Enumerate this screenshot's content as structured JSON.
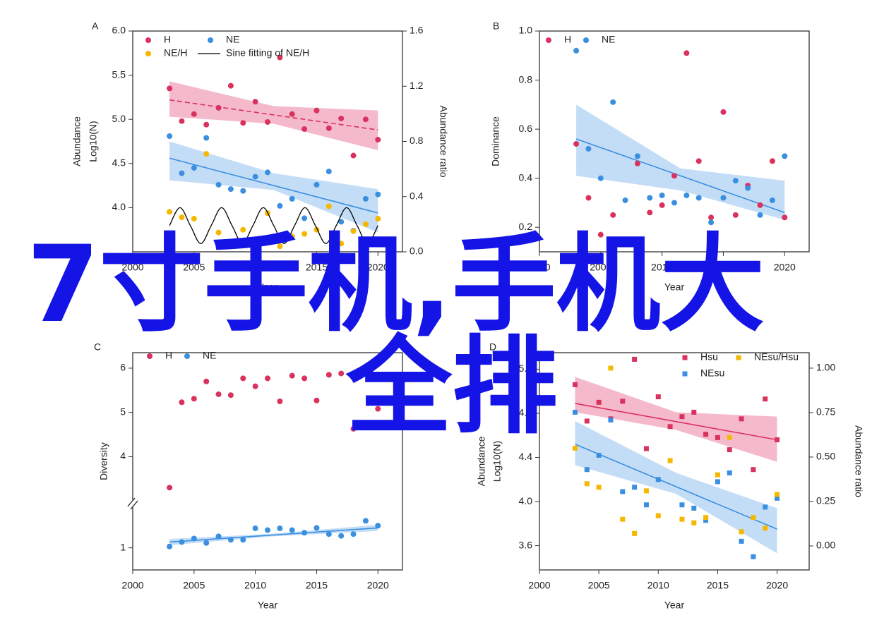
{
  "chart_data": [
    {
      "type": "scatter",
      "label": "A",
      "xlabel": "Year",
      "ylabel": [
        "Abundance",
        "Log10(N)"
      ],
      "y2label": "Abundance ratio",
      "xlim": [
        2000,
        2022
      ],
      "xticks": [
        2000,
        2005,
        2010,
        2015,
        2020
      ],
      "ylim": [
        3.5,
        6.0
      ],
      "yticks": [
        {
          "value": 4,
          "label": "4.0"
        },
        4.5,
        {
          "value": 5,
          "label": "5.0"
        },
        5.5,
        {
          "value": 6,
          "label": "6.0"
        }
      ],
      "y2lim": [
        0,
        1.6
      ],
      "y2ticks": [
        {
          "value": 0,
          "label": "0.0"
        },
        0.4,
        0.8,
        1.2,
        1.6
      ],
      "series": [
        {
          "name": "H",
          "color": "#d9325e",
          "marker": "circle",
          "x": [
            2003,
            2004,
            2005,
            2006,
            2007,
            2008,
            2009,
            2010,
            2011,
            2012,
            2013,
            2014,
            2015,
            2016,
            2017,
            2018,
            2019,
            2020
          ],
          "values": [
            5.35,
            4.98,
            5.06,
            4.94,
            5.13,
            5.38,
            4.96,
            5.2,
            4.97,
            5.7,
            5.06,
            4.89,
            5.1,
            4.9,
            5.01,
            4.59,
            5.0,
            4.77
          ]
        },
        {
          "name": "NE",
          "color": "#3a8fe0",
          "marker": "circle",
          "x": [
            2003,
            2004,
            2005,
            2006,
            2007,
            2008,
            2009,
            2010,
            2011,
            2012,
            2013,
            2014,
            2015,
            2016,
            2017,
            2018,
            2019,
            2020
          ],
          "values": [
            4.81,
            4.39,
            4.45,
            4.79,
            4.26,
            4.21,
            4.19,
            4.35,
            4.4,
            4.02,
            4.1,
            3.88,
            4.26,
            4.41,
            3.84,
            3.74,
            4.1,
            4.15
          ]
        },
        {
          "name": "NE/H",
          "color": "#f5b800",
          "marker": "circle",
          "axis": "y2",
          "x": [
            2003,
            2004,
            2005,
            2006,
            2007,
            2008,
            2009,
            2010,
            2011,
            2012,
            2013,
            2014,
            2015,
            2016,
            2017,
            2018,
            2019,
            2020
          ],
          "values": [
            0.29,
            0.25,
            0.24,
            0.71,
            0.14,
            0.06,
            0.16,
            0.09,
            0.28,
            0.04,
            0.11,
            0.13,
            0.16,
            0.33,
            0.06,
            0.15,
            0.2,
            0.24
          ]
        },
        {
          "name": "Sine fitting of NE/H",
          "color": "#000000",
          "marker": "line",
          "axis": "y2",
          "x": [
            2003,
            2003.85,
            2004.7,
            2005.55,
            2006.4,
            2007.25,
            2008.1,
            2008.95,
            2009.8,
            2010.65,
            2011.5,
            2012.35,
            2013.2,
            2014.05,
            2014.9,
            2015.75,
            2016.6,
            2017.45,
            2018.3,
            2019.15,
            2020
          ],
          "values": [
            0.19,
            0.32,
            0.19,
            0.06,
            0.19,
            0.32,
            0.19,
            0.06,
            0.19,
            0.32,
            0.19,
            0.06,
            0.19,
            0.32,
            0.19,
            0.06,
            0.19,
            0.32,
            0.19,
            0.06,
            0.19
          ]
        }
      ],
      "fits": [
        {
          "color": "#d9325e",
          "band_color": "#f2a8bf",
          "dashed": true,
          "x": [
            2003,
            2020
          ],
          "values": [
            5.22,
            4.88
          ],
          "band": {
            "x": [
              2003,
              2011.5,
              2020
            ],
            "lower": [
              5.03,
              4.95,
              4.65
            ],
            "upper": [
              5.43,
              5.15,
              5.1
            ]
          }
        },
        {
          "color": "#3a8fe0",
          "band_color": "#b5d5f5",
          "dashed": false,
          "x": [
            2003,
            2020
          ],
          "values": [
            4.56,
            3.94
          ],
          "band": {
            "x": [
              2003,
              2011.5,
              2020
            ],
            "lower": [
              4.31,
              4.2,
              3.72
            ],
            "upper": [
              4.75,
              4.39,
              4.21
            ]
          }
        }
      ]
    },
    {
      "type": "scatter",
      "label": "B",
      "xlabel": "Year",
      "ylabel": [
        "Dominance"
      ],
      "xlim": [
        2000,
        2022
      ],
      "xticks": [
        2000,
        2005,
        2010,
        2015,
        2020
      ],
      "ylim": [
        0.1,
        1.0
      ],
      "yticks": [
        0.2,
        0.4,
        0.6,
        0.8,
        {
          "value": 1,
          "label": "1.0"
        }
      ],
      "series": [
        {
          "name": "H",
          "color": "#d9325e",
          "marker": "circle",
          "x": [
            2003,
            2004,
            2005,
            2006,
            2008,
            2009,
            2010,
            2011,
            2012,
            2013,
            2014,
            2015,
            2016,
            2017,
            2018,
            2019,
            2020
          ],
          "values": [
            0.54,
            0.32,
            0.17,
            0.25,
            0.46,
            0.26,
            0.29,
            0.41,
            0.91,
            0.47,
            0.24,
            0.67,
            0.25,
            0.37,
            0.29,
            0.47,
            0.24
          ]
        },
        {
          "name": "NE",
          "color": "#3a8fe0",
          "marker": "circle",
          "x": [
            2003,
            2004,
            2005,
            2006,
            2007,
            2008,
            2009,
            2010,
            2011,
            2012,
            2013,
            2014,
            2015,
            2016,
            2017,
            2018,
            2019,
            2020
          ],
          "values": [
            0.92,
            0.52,
            0.4,
            0.71,
            0.31,
            0.49,
            0.32,
            0.33,
            0.3,
            0.33,
            0.32,
            0.22,
            0.32,
            0.39,
            0.36,
            0.25,
            0.31,
            0.49
          ]
        }
      ],
      "fits": [
        {
          "color": "#3a8fe0",
          "band_color": "#b5d5f5",
          "dashed": false,
          "x": [
            2003,
            2020
          ],
          "values": [
            0.56,
            0.26
          ],
          "band": {
            "x": [
              2003,
              2011.5,
              2020
            ],
            "lower": [
              0.41,
              0.35,
              0.23
            ],
            "upper": [
              0.7,
              0.44,
              0.39
            ]
          }
        }
      ]
    },
    {
      "type": "scatter",
      "label": "C",
      "xlabel": "Year",
      "ylabel": [
        "Diversity"
      ],
      "xlim": [
        2000,
        2022
      ],
      "xticks": [
        2000,
        2005,
        2010,
        2015,
        2020
      ],
      "ylim": [
        0.5,
        6.35
      ],
      "ybreak": [
        2,
        2.94
      ],
      "yticks": [
        1,
        4,
        5,
        6
      ],
      "series": [
        {
          "name": "H",
          "color": "#d9325e",
          "marker": "circle",
          "x": [
            2003,
            2004,
            2005,
            2006,
            2007,
            2008,
            2009,
            2010,
            2011,
            2012,
            2013,
            2014,
            2015,
            2016,
            2017,
            2018,
            2019,
            2020
          ],
          "values": [
            3.3,
            5.23,
            5.31,
            5.7,
            5.41,
            5.39,
            5.77,
            5.59,
            5.77,
            5.25,
            5.83,
            5.77,
            5.27,
            5.85,
            5.88,
            4.63,
            null,
            5.08
          ]
        },
        {
          "name": "NE",
          "color": "#3a8fe0",
          "marker": "circle",
          "x": [
            2003,
            2004,
            2005,
            2006,
            2007,
            2008,
            2009,
            2010,
            2011,
            2012,
            2013,
            2014,
            2015,
            2016,
            2017,
            2018,
            2019,
            2020
          ],
          "values": [
            1.03,
            1.13,
            1.21,
            1.11,
            1.26,
            1.18,
            1.18,
            1.44,
            1.4,
            1.44,
            1.4,
            1.34,
            1.45,
            1.31,
            1.27,
            1.31,
            1.61,
            1.5
          ]
        }
      ],
      "fits": [
        {
          "color": "#3a8fe0",
          "band_color": "#b5d5f5",
          "dashed": false,
          "x": [
            2003,
            2020
          ],
          "values": [
            1.13,
            1.45
          ],
          "band": {
            "x": [
              2003,
              2011.5,
              2020
            ],
            "lower": [
              1.06,
              1.26,
              1.38
            ],
            "upper": [
              1.2,
              1.32,
              1.52
            ]
          }
        }
      ]
    },
    {
      "type": "scatter",
      "label": "D",
      "xlabel": "Year",
      "ylabel": [
        "Abundance",
        "Log10(N)"
      ],
      "y2label": "Abundance ratio",
      "xlim": [
        2000,
        2022.7
      ],
      "xticks": [
        2000,
        2005,
        2010,
        2015,
        2020
      ],
      "ylim": [
        3.38,
        5.35
      ],
      "yticks": [
        3.6,
        {
          "value": 4,
          "label": "4.0"
        },
        4.4,
        4.8,
        5.2
      ],
      "y2lim": [
        -0.135,
        1.087
      ],
      "y2ticks": [
        {
          "value": 0,
          "label": "0.00"
        },
        0.25,
        {
          "value": 0.5,
          "label": "0.50"
        },
        0.75,
        {
          "value": 1,
          "label": "1.00"
        }
      ],
      "series": [
        {
          "name": "Hsu",
          "color": "#d9325e",
          "marker": "square",
          "x": [
            2003,
            2004,
            2005,
            2006,
            2007,
            2008,
            2009,
            2010,
            2011,
            2012,
            2013,
            2014,
            2015,
            2016,
            2017,
            2018,
            2019,
            2020
          ],
          "values": [
            5.06,
            4.73,
            4.9,
            4.75,
            4.91,
            5.29,
            4.48,
            4.95,
            4.68,
            4.77,
            4.81,
            4.61,
            4.58,
            4.47,
            4.75,
            4.29,
            4.93,
            4.56
          ]
        },
        {
          "name": "NEsu",
          "color": "#3a8fe0",
          "marker": "square",
          "x": [
            2003,
            2004,
            2005,
            2006,
            2007,
            2008,
            2009,
            2010,
            2011,
            2012,
            2013,
            2014,
            2015,
            2016,
            2017,
            2018,
            2019,
            2020
          ],
          "values": [
            4.81,
            4.29,
            4.42,
            4.74,
            4.09,
            4.13,
            3.97,
            4.2,
            null,
            3.97,
            3.94,
            3.83,
            4.18,
            4.26,
            3.64,
            3.5,
            3.95,
            4.03
          ]
        },
        {
          "name": "NEsu/Hsu",
          "color": "#f5b800",
          "marker": "square",
          "axis": "y2",
          "x": [
            2003,
            2004,
            2005,
            2006,
            2007,
            2008,
            2009,
            2010,
            2011,
            2012,
            2013,
            2014,
            2015,
            2016,
            2017,
            2018,
            2019,
            2020
          ],
          "values": [
            0.55,
            0.35,
            0.33,
            1.0,
            0.15,
            0.07,
            0.31,
            0.17,
            0.48,
            0.15,
            0.13,
            0.16,
            0.4,
            0.61,
            0.08,
            0.16,
            0.1,
            0.29
          ]
        }
      ],
      "fits": [
        {
          "color": "#d9325e",
          "band_color": "#f2a8bf",
          "dashed": false,
          "x": [
            2003,
            2020
          ],
          "values": [
            4.89,
            4.56
          ],
          "band": {
            "x": [
              2003,
              2011.5,
              2020
            ],
            "lower": [
              4.81,
              4.65,
              4.36
            ],
            "upper": [
              5.13,
              4.81,
              4.77
            ]
          }
        },
        {
          "color": "#3a8fe0",
          "band_color": "#b5d5f5",
          "dashed": false,
          "x": [
            2003,
            2020
          ],
          "values": [
            4.52,
            3.75
          ],
          "band": {
            "x": [
              2003,
              2011.5,
              2020
            ],
            "lower": [
              4.33,
              4.07,
              3.53
            ],
            "upper": [
              4.73,
              4.26,
              3.94
            ]
          }
        }
      ]
    }
  ],
  "overlay": {
    "line1": "7寸手机,手机大",
    "line2": "全排"
  }
}
